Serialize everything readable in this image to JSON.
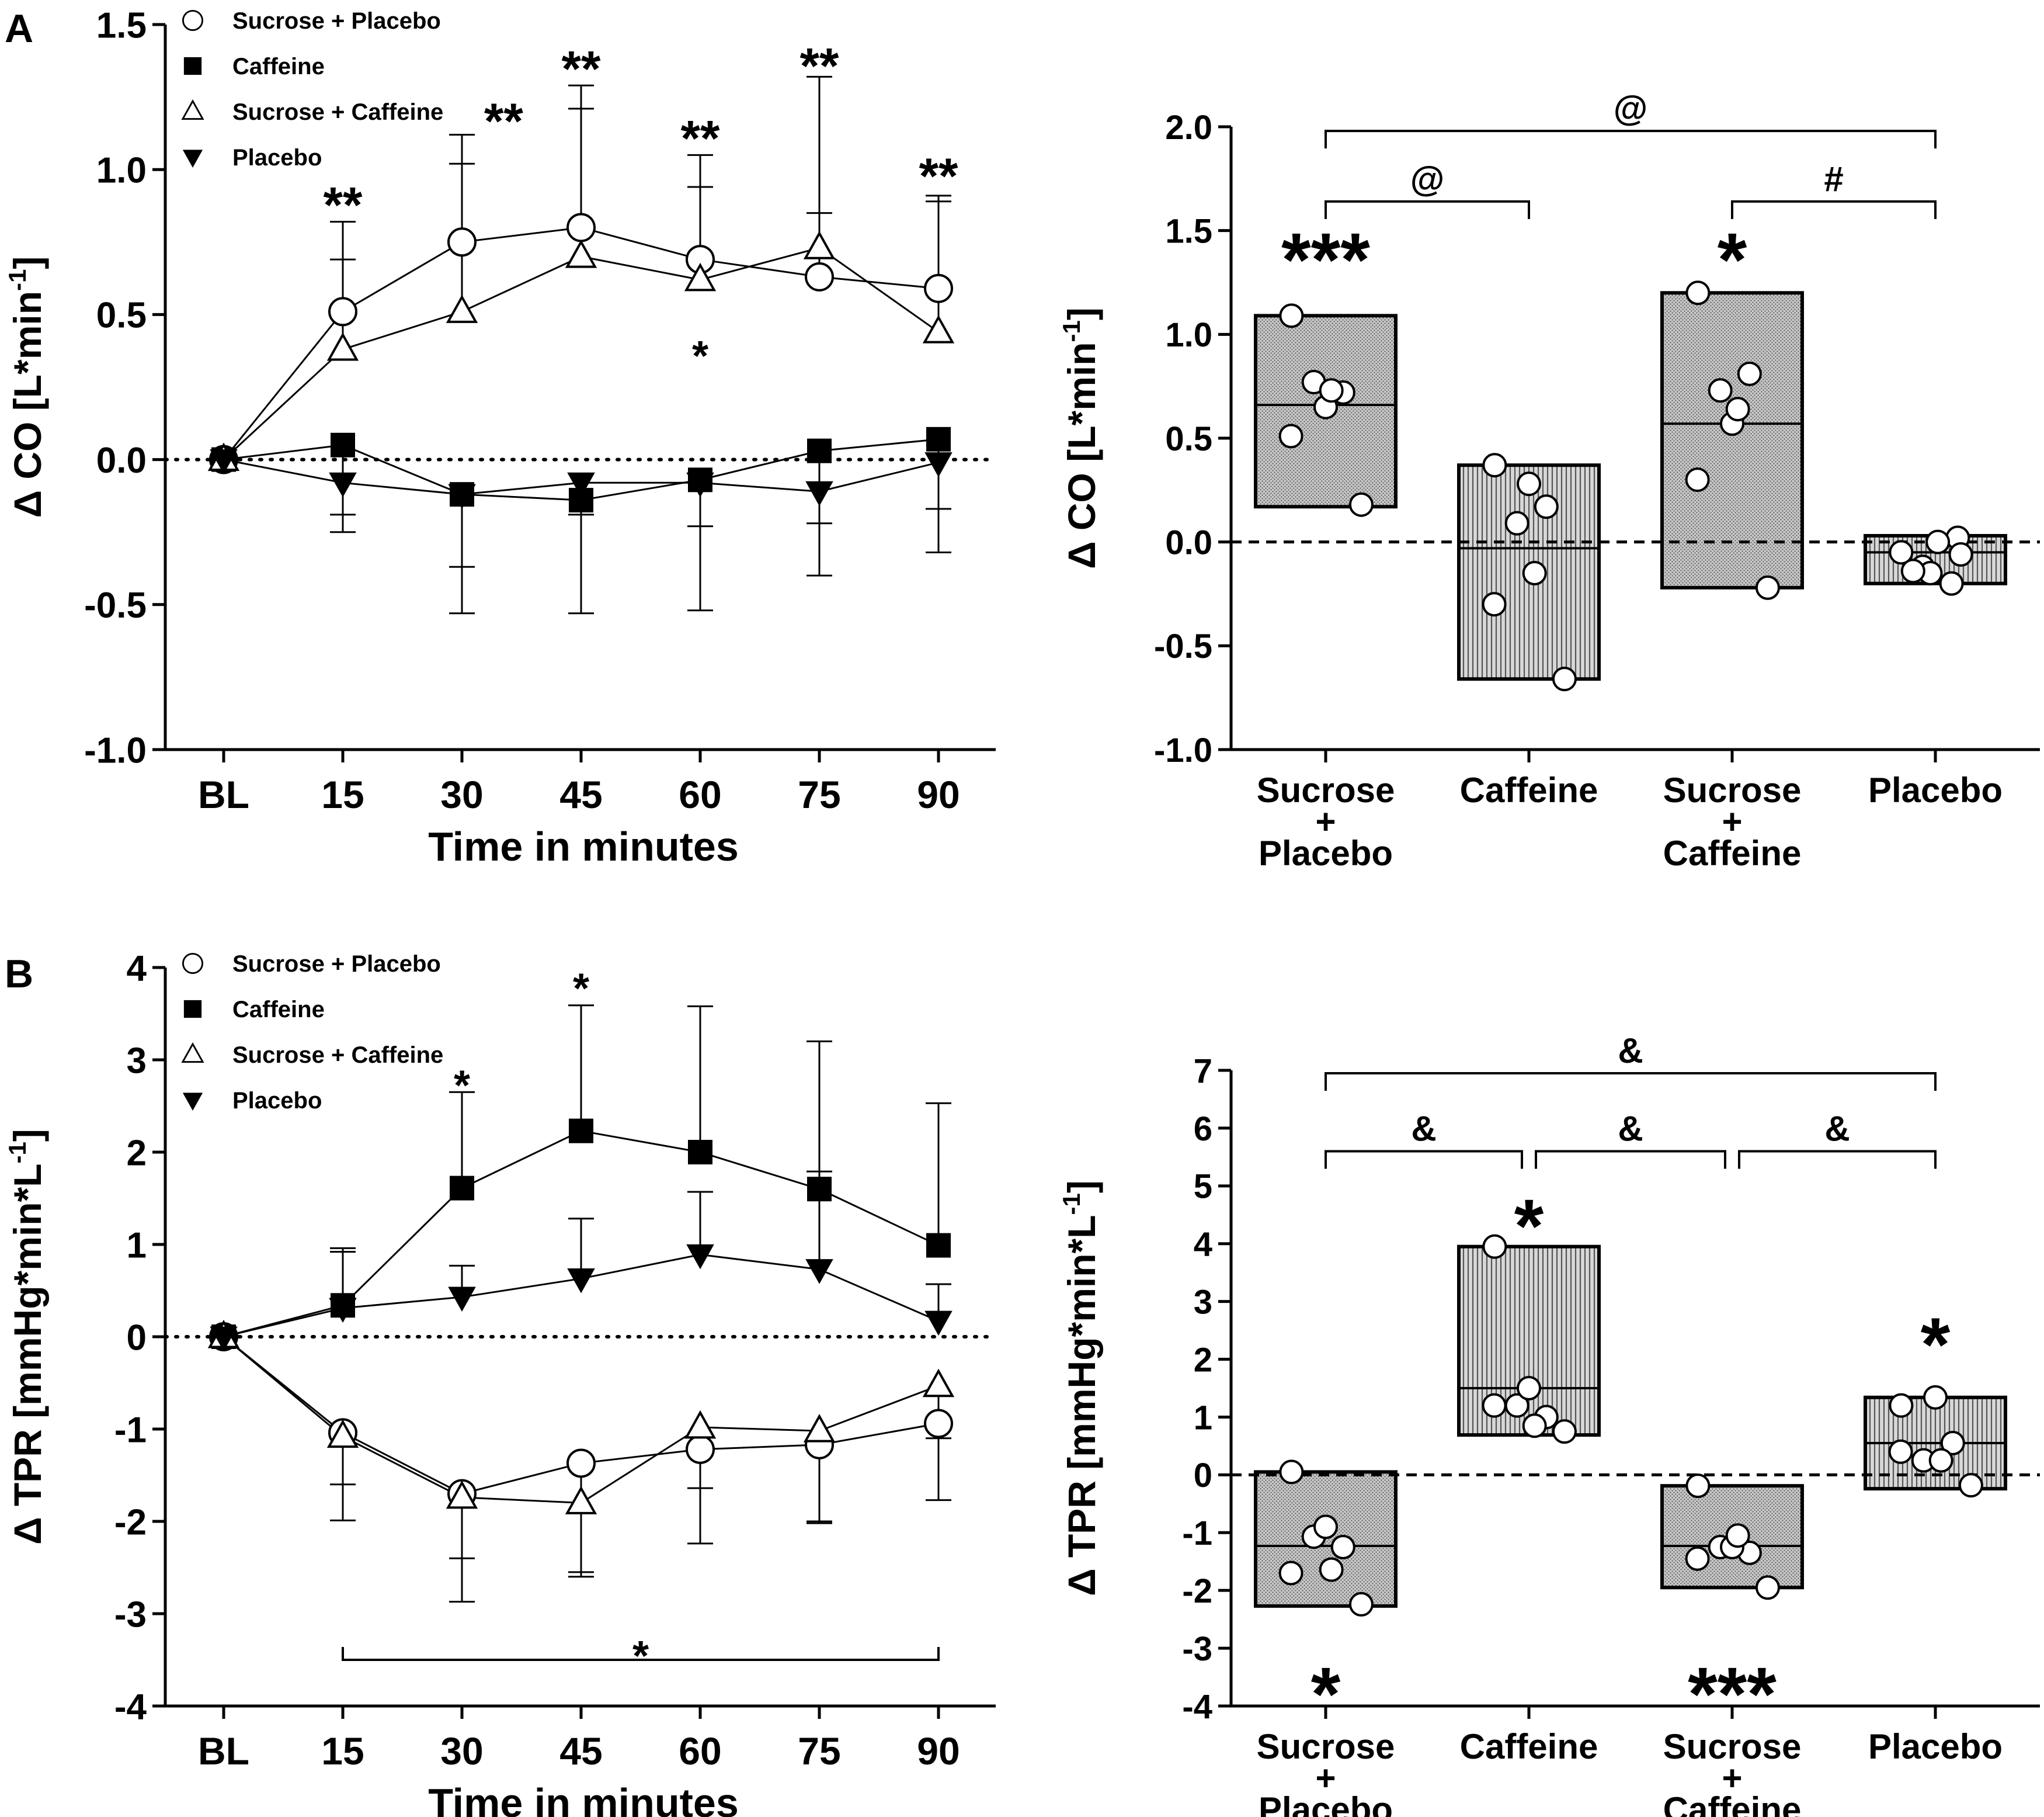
{
  "panel_labels": {
    "a": "A",
    "b": "B"
  },
  "chart_data": [
    {
      "id": "A_time",
      "type": "line",
      "ylabel_main": "Δ CO [L*min",
      "ylabel_sup": "-1",
      "ylabel_end": "]",
      "xlabel": "Time in minutes",
      "categories": [
        "BL",
        "15",
        "30",
        "45",
        "60",
        "75",
        "90"
      ],
      "ylim": [
        -1.0,
        1.5
      ],
      "yticks": [
        -1.0,
        -0.5,
        0.0,
        0.5,
        1.0,
        1.5
      ],
      "ytick_labels": [
        "-1.0",
        "-0.5",
        "0.0",
        "0.5",
        "1.0",
        "1.5"
      ],
      "series": [
        {
          "name": "Sucrose + Placebo",
          "marker": "circle",
          "values": [
            0,
            0.51,
            0.75,
            0.8,
            0.69,
            0.63,
            0.59
          ],
          "err": [
            null,
            {
              "v": 0.82,
              "d": "up"
            },
            {
              "v": 1.12,
              "d": "up"
            },
            {
              "v": 1.29,
              "d": "up"
            },
            {
              "v": 1.05,
              "d": "up"
            },
            {
              "v": 1.32,
              "d": "up"
            },
            {
              "v": 0.91,
              "d": "up"
            }
          ]
        },
        {
          "name": "Caffeine",
          "marker": "square",
          "values": [
            0,
            0.05,
            -0.12,
            -0.14,
            -0.07,
            0.03,
            0.07
          ],
          "err": [
            null,
            {
              "v": -0.19,
              "d": "down"
            },
            {
              "v": -0.53,
              "d": "down"
            },
            {
              "v": -0.53,
              "d": "down"
            },
            {
              "v": -0.52,
              "d": "down"
            },
            {
              "v": -0.4,
              "d": "down"
            },
            {
              "v": -0.32,
              "d": "down"
            }
          ]
        },
        {
          "name": "Sucrose + Caffeine",
          "marker": "triangle",
          "values": [
            0,
            0.38,
            0.51,
            0.7,
            0.62,
            0.73,
            0.44
          ],
          "err": [
            null,
            {
              "v": 0.69,
              "d": "up"
            },
            {
              "v": 1.02,
              "d": "up"
            },
            {
              "v": 1.21,
              "d": "up"
            },
            {
              "v": 0.94,
              "d": "up"
            },
            {
              "v": 0.85,
              "d": "up"
            },
            {
              "v": 0.89,
              "d": "up"
            }
          ]
        },
        {
          "name": "Placebo",
          "marker": "triangle-down",
          "values": [
            0,
            -0.08,
            -0.12,
            -0.08,
            -0.08,
            -0.11,
            -0.01
          ],
          "err": [
            null,
            {
              "v": -0.25,
              "d": "down"
            },
            {
              "v": -0.37,
              "d": "down"
            },
            {
              "v": -0.19,
              "d": "down"
            },
            {
              "v": -0.23,
              "d": "down"
            },
            {
              "v": -0.22,
              "d": "down"
            },
            {
              "v": -0.17,
              "d": "down"
            }
          ]
        }
      ],
      "annotations": [
        {
          "text": "**",
          "cat": 1,
          "y": 0.88,
          "size": "md"
        },
        {
          "text": "**",
          "cat": 2.35,
          "y": 1.17,
          "size": "md"
        },
        {
          "text": "**",
          "cat": 3,
          "y": 1.35,
          "size": "md"
        },
        {
          "text": "**",
          "cat": 4,
          "y": 1.11,
          "size": "md"
        },
        {
          "text": "**",
          "cat": 5,
          "y": 1.36,
          "size": "md"
        },
        {
          "text": "**",
          "cat": 6,
          "y": 0.98,
          "size": "md"
        },
        {
          "text": "*",
          "cat": 4,
          "y": 0.36,
          "size": "sm"
        }
      ],
      "legend": {
        "position": "top-left",
        "entries": [
          "Sucrose + Placebo",
          "Caffeine",
          "Sucrose + Caffeine",
          "Placebo"
        ]
      }
    },
    {
      "id": "A_box",
      "type": "box",
      "ylabel_main": "Δ CO [L*min",
      "ylabel_sup": "-1",
      "ylabel_end": "]",
      "categories": [
        [
          "Sucrose",
          "+",
          "Placebo"
        ],
        [
          "Caffeine"
        ],
        [
          "Sucrose",
          "+",
          "Caffeine"
        ],
        [
          "Placebo"
        ]
      ],
      "ylim": [
        -1.0,
        2.0
      ],
      "yticks": [
        -1.0,
        -0.5,
        0.0,
        0.5,
        1.0,
        1.5,
        2.0
      ],
      "ytick_labels": [
        "-1.0",
        "-0.5",
        "0.0",
        "0.5",
        "1.0",
        "1.5",
        "2.0"
      ],
      "boxes": [
        {
          "name": "Sucrose + Placebo",
          "min": 0.17,
          "max": 1.09,
          "median": 0.66,
          "pattern": "dots",
          "points": [
            1.09,
            0.77,
            0.72,
            0.65,
            0.73,
            0.51,
            0.18
          ],
          "stars": "***",
          "stars_y": 1.38,
          "stars_size": "lg"
        },
        {
          "name": "Caffeine",
          "min": -0.66,
          "max": 0.37,
          "median": -0.03,
          "pattern": "vlines",
          "points": [
            0.37,
            0.09,
            0.17,
            0.28,
            -0.15,
            -0.3,
            -0.66
          ],
          "stars": "",
          "stars_y": 0,
          "stars_size": "lg"
        },
        {
          "name": "Sucrose + Caffeine",
          "min": -0.22,
          "max": 1.2,
          "median": 0.57,
          "pattern": "dots",
          "points": [
            1.2,
            0.73,
            0.81,
            0.57,
            0.64,
            0.3,
            -0.22
          ],
          "stars": "*",
          "stars_y": 1.38,
          "stars_size": "lg"
        },
        {
          "name": "Placebo",
          "min": -0.2,
          "max": 0.03,
          "median": -0.05,
          "pattern": "vlines",
          "points": [
            -0.05,
            -0.12,
            0.02,
            -0.15,
            0.0,
            -0.14,
            -0.06,
            -0.2
          ],
          "stars": "",
          "stars_y": 0,
          "stars_size": "lg"
        }
      ],
      "brackets": [
        {
          "from": 0,
          "to": 3,
          "y": 1.98,
          "label": "@"
        },
        {
          "from": 0,
          "to": 1,
          "y": 1.64,
          "label": "@"
        },
        {
          "from": 2,
          "to": 3,
          "y": 1.64,
          "label": "#"
        }
      ]
    },
    {
      "id": "B_time",
      "type": "line",
      "ylabel_main": "Δ TPR [mmHg*min*L",
      "ylabel_sup": "-1",
      "ylabel_end": "]",
      "xlabel": "Time in minutes",
      "categories": [
        "BL",
        "15",
        "30",
        "45",
        "60",
        "75",
        "90"
      ],
      "ylim": [
        -4,
        4
      ],
      "yticks": [
        -4,
        -3,
        -2,
        -1,
        0,
        1,
        2,
        3,
        4
      ],
      "ytick_labels": [
        "-4",
        "-3",
        "-2",
        "-1",
        "0",
        "1",
        "2",
        "3",
        "4"
      ],
      "series": [
        {
          "name": "Sucrose + Placebo",
          "marker": "circle",
          "values": [
            0,
            -1.04,
            -1.7,
            -1.37,
            -1.22,
            -1.17,
            -0.94
          ],
          "err": [
            null,
            {
              "v": -1.6,
              "d": "down"
            },
            {
              "v": -2.87,
              "d": "down"
            },
            {
              "v": -2.55,
              "d": "down"
            },
            {
              "v": -2.24,
              "d": "down"
            },
            {
              "v": -2.0,
              "d": "down"
            },
            {
              "v": -1.77,
              "d": "down"
            }
          ]
        },
        {
          "name": "Caffeine",
          "marker": "square",
          "values": [
            0,
            0.34,
            1.61,
            2.23,
            2.0,
            1.6,
            0.99
          ],
          "err": [
            null,
            {
              "v": 0.96,
              "d": "up"
            },
            {
              "v": 2.65,
              "d": "up"
            },
            {
              "v": 3.59,
              "d": "up"
            },
            {
              "v": 3.58,
              "d": "up"
            },
            {
              "v": 3.2,
              "d": "up"
            },
            {
              "v": 2.53,
              "d": "up"
            }
          ]
        },
        {
          "name": "Sucrose + Caffeine",
          "marker": "triangle",
          "values": [
            0,
            -1.08,
            -1.74,
            -1.8,
            -0.98,
            -1.02,
            -0.53
          ],
          "err": [
            null,
            {
              "v": -1.99,
              "d": "down"
            },
            {
              "v": -2.4,
              "d": "down"
            },
            {
              "v": -2.6,
              "d": "down"
            },
            {
              "v": -1.64,
              "d": "down"
            },
            {
              "v": -2.02,
              "d": "down"
            },
            {
              "v": -1.1,
              "d": "down"
            }
          ]
        },
        {
          "name": "Placebo",
          "marker": "triangle-down",
          "values": [
            0,
            0.31,
            0.43,
            0.63,
            0.89,
            0.73,
            0.17
          ],
          "err": [
            null,
            {
              "v": 0.92,
              "d": "up"
            },
            {
              "v": 0.77,
              "d": "up"
            },
            {
              "v": 1.28,
              "d": "up"
            },
            {
              "v": 1.57,
              "d": "up"
            },
            {
              "v": 1.79,
              "d": "up"
            },
            {
              "v": 0.57,
              "d": "up"
            }
          ]
        }
      ],
      "annotations": [
        {
          "text": "*",
          "cat": 2,
          "y": 2.73,
          "size": "sm"
        },
        {
          "text": "*",
          "cat": 3,
          "y": 3.78,
          "size": "sm"
        },
        {
          "text": "*",
          "cat": 3.5,
          "y": -3.45,
          "size": "sm"
        }
      ],
      "bottom_bracket": {
        "from": 1,
        "to": 6,
        "y": -3.5
      },
      "legend": {
        "position": "top-left",
        "entries": [
          "Sucrose + Placebo",
          "Caffeine",
          "Sucrose + Caffeine",
          "Placebo"
        ]
      }
    },
    {
      "id": "B_box",
      "type": "box",
      "ylabel_main": "Δ TPR [mmHg*min*L",
      "ylabel_sup": "-1",
      "ylabel_end": "]",
      "categories": [
        [
          "Sucrose",
          "+",
          "Placebo"
        ],
        [
          "Caffeine"
        ],
        [
          "Sucrose",
          "+",
          "Caffeine"
        ],
        [
          "Placebo"
        ]
      ],
      "ylim": [
        -4,
        7
      ],
      "yticks": [
        -4,
        -3,
        -2,
        -1,
        0,
        1,
        2,
        3,
        4,
        5,
        6,
        7
      ],
      "ytick_labels": [
        "-4",
        "-3",
        "-2",
        "-1",
        "0",
        "1",
        "2",
        "3",
        "4",
        "5",
        "6",
        "7"
      ],
      "boxes": [
        {
          "name": "Sucrose + Placebo",
          "min": -2.27,
          "max": 0.05,
          "median": -1.23,
          "pattern": "dots",
          "points": [
            0.05,
            -1.07,
            -1.25,
            -0.9,
            -1.64,
            -1.7,
            -2.24
          ],
          "stars": "*",
          "stars_y": -3.72,
          "stars_size": "lg"
        },
        {
          "name": "Caffeine",
          "min": 0.69,
          "max": 3.95,
          "median": 1.5,
          "pattern": "vlines",
          "points": [
            3.95,
            1.2,
            1.0,
            1.5,
            0.85,
            1.2,
            0.75
          ],
          "stars": "*",
          "stars_y": 4.38,
          "stars_size": "lg"
        },
        {
          "name": "Sucrose + Caffeine",
          "min": -1.95,
          "max": -0.19,
          "median": -1.23,
          "pattern": "dots",
          "points": [
            -0.19,
            -1.25,
            -1.35,
            -1.25,
            -1.05,
            -1.45,
            -1.95
          ],
          "stars": "***",
          "stars_y": -3.72,
          "stars_size": "lg"
        },
        {
          "name": "Placebo",
          "min": -0.24,
          "max": 1.34,
          "median": 0.55,
          "pattern": "vlines",
          "points": [
            1.2,
            0.25,
            0.55,
            1.34,
            0.25,
            0.4,
            -0.18
          ],
          "stars": "*",
          "stars_y": 2.33,
          "stars_size": "lg"
        }
      ],
      "brackets": [
        {
          "from": 0,
          "to": 3,
          "y": 6.95,
          "label": "&"
        },
        {
          "from": 0,
          "to": 1,
          "y": 5.6,
          "label": "&"
        },
        {
          "from": 1,
          "to": 2,
          "y": 5.6,
          "label": "&"
        },
        {
          "from": 2,
          "to": 3,
          "y": 5.6,
          "label": "&"
        }
      ]
    }
  ]
}
